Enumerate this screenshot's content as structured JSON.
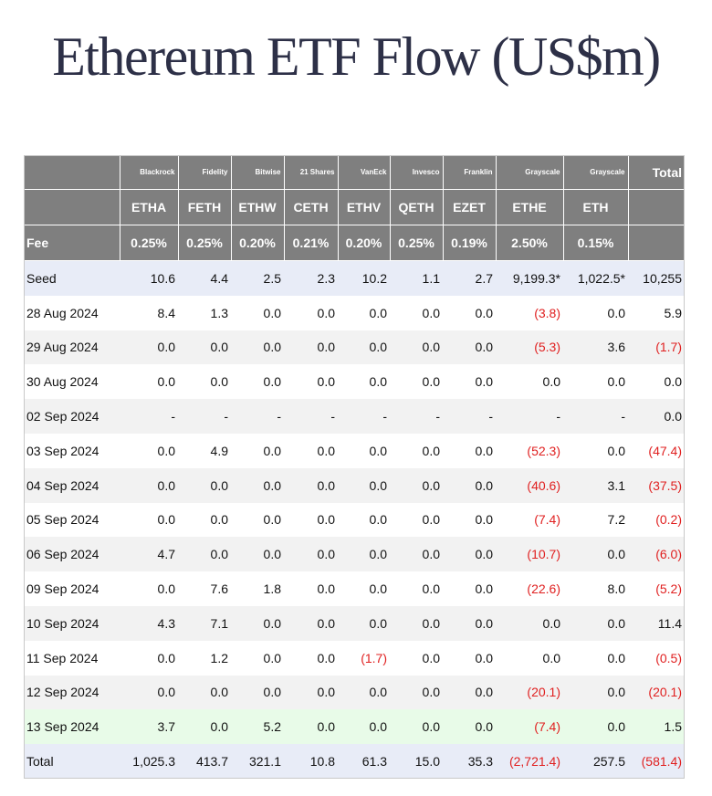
{
  "title": "Ethereum ETF Flow (US$m)",
  "header": {
    "issuers": [
      "",
      "Blackrock",
      "Fidelity",
      "Bitwise",
      "21 Shares",
      "VanEck",
      "Invesco",
      "Franklin",
      "Grayscale",
      "Grayscale",
      "Total"
    ],
    "tickers": [
      "",
      "ETHA",
      "FETH",
      "ETHW",
      "CETH",
      "ETHV",
      "QETH",
      "EZET",
      "ETHE",
      "ETH",
      ""
    ],
    "fees": [
      "Fee",
      "0.25%",
      "0.25%",
      "0.20%",
      "0.21%",
      "0.20%",
      "0.25%",
      "0.19%",
      "2.50%",
      "0.15%",
      ""
    ]
  },
  "rows": [
    {
      "style": "seed",
      "cells": [
        "Seed",
        "10.6",
        "4.4",
        "2.5",
        "2.3",
        "10.2",
        "1.1",
        "2.7",
        "9,199.3*",
        "1,022.5*",
        "10,255"
      ]
    },
    {
      "style": "white",
      "cells": [
        "28 Aug 2024",
        "8.4",
        "1.3",
        "0.0",
        "0.0",
        "0.0",
        "0.0",
        "0.0",
        "(3.8)",
        "0.0",
        "5.9"
      ]
    },
    {
      "style": "alt",
      "cells": [
        "29 Aug 2024",
        "0.0",
        "0.0",
        "0.0",
        "0.0",
        "0.0",
        "0.0",
        "0.0",
        "(5.3)",
        "3.6",
        "(1.7)"
      ]
    },
    {
      "style": "white",
      "cells": [
        "30 Aug 2024",
        "0.0",
        "0.0",
        "0.0",
        "0.0",
        "0.0",
        "0.0",
        "0.0",
        "0.0",
        "0.0",
        "0.0"
      ]
    },
    {
      "style": "alt",
      "cells": [
        "02 Sep 2024",
        "-",
        "-",
        "-",
        "-",
        "-",
        "-",
        "-",
        "-",
        "-",
        "0.0"
      ]
    },
    {
      "style": "white",
      "cells": [
        "03 Sep 2024",
        "0.0",
        "4.9",
        "0.0",
        "0.0",
        "0.0",
        "0.0",
        "0.0",
        "(52.3)",
        "0.0",
        "(47.4)"
      ]
    },
    {
      "style": "alt",
      "cells": [
        "04 Sep 2024",
        "0.0",
        "0.0",
        "0.0",
        "0.0",
        "0.0",
        "0.0",
        "0.0",
        "(40.6)",
        "3.1",
        "(37.5)"
      ]
    },
    {
      "style": "white",
      "cells": [
        "05 Sep 2024",
        "0.0",
        "0.0",
        "0.0",
        "0.0",
        "0.0",
        "0.0",
        "0.0",
        "(7.4)",
        "7.2",
        "(0.2)"
      ]
    },
    {
      "style": "alt",
      "cells": [
        "06 Sep 2024",
        "4.7",
        "0.0",
        "0.0",
        "0.0",
        "0.0",
        "0.0",
        "0.0",
        "(10.7)",
        "0.0",
        "(6.0)"
      ]
    },
    {
      "style": "white",
      "cells": [
        "09 Sep 2024",
        "0.0",
        "7.6",
        "1.8",
        "0.0",
        "0.0",
        "0.0",
        "0.0",
        "(22.6)",
        "8.0",
        "(5.2)"
      ]
    },
    {
      "style": "alt",
      "cells": [
        "10 Sep 2024",
        "4.3",
        "7.1",
        "0.0",
        "0.0",
        "0.0",
        "0.0",
        "0.0",
        "0.0",
        "0.0",
        "11.4"
      ]
    },
    {
      "style": "white",
      "cells": [
        "11 Sep 2024",
        "0.0",
        "1.2",
        "0.0",
        "0.0",
        "(1.7)",
        "0.0",
        "0.0",
        "0.0",
        "0.0",
        "(0.5)"
      ]
    },
    {
      "style": "alt",
      "cells": [
        "12 Sep 2024",
        "0.0",
        "0.0",
        "0.0",
        "0.0",
        "0.0",
        "0.0",
        "0.0",
        "(20.1)",
        "0.0",
        "(20.1)"
      ]
    },
    {
      "style": "highlight",
      "cells": [
        "13 Sep 2024",
        "3.7",
        "0.0",
        "5.2",
        "0.0",
        "0.0",
        "0.0",
        "0.0",
        "(7.4)",
        "0.0",
        "1.5"
      ]
    },
    {
      "style": "total",
      "cells": [
        "Total",
        "1,025.3",
        "413.7",
        "321.1",
        "10.8",
        "61.3",
        "15.0",
        "35.3",
        "(2,721.4)",
        "257.5",
        "(581.4)"
      ]
    }
  ],
  "colors": {
    "header_bg": "#7f7f7f",
    "negative": "#e02020",
    "seed_row_bg": "#e8ecf7",
    "highlight_row_bg": "#e8fbe8",
    "alt_row_bg": "#f2f2f2"
  }
}
